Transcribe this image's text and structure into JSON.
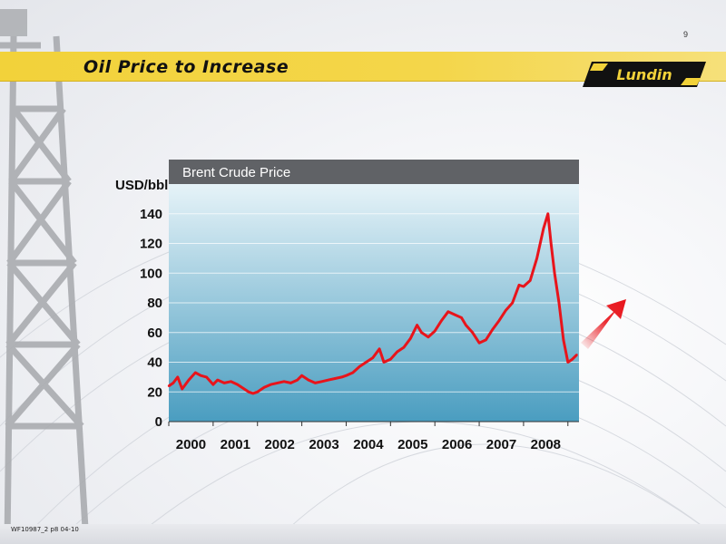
{
  "slide": {
    "title": "Oil Price to Increase",
    "page_number": "9",
    "logo_text": "Lundin",
    "footer_code": "WF10987_2 p8 04-10"
  },
  "colors": {
    "header_band": "#f2d23a",
    "chart_header": "#606266",
    "plot_top": "#e6f3f8",
    "plot_bottom": "#4a9dc0",
    "series_line": "#e8141b",
    "arrow": "#e8141b"
  },
  "chart_data": {
    "type": "line",
    "title": "Brent Crude Price",
    "ylabel": "USD/bbl",
    "xlabel": "",
    "ylim": [
      0,
      160
    ],
    "xlim": [
      2000.0,
      2009.25
    ],
    "y_ticks": [
      0,
      20,
      40,
      60,
      80,
      100,
      120,
      140
    ],
    "x_tick_labels": [
      "2000",
      "2001",
      "2002",
      "2003",
      "2004",
      "2005",
      "2006",
      "2007",
      "2008"
    ],
    "grid": true,
    "legend": "none",
    "annotations": [
      "upward-arrow"
    ],
    "series": [
      {
        "x": [
          2000.0,
          2000.1,
          2000.2,
          2000.3,
          2000.45,
          2000.6,
          2000.72,
          2000.85,
          2001.0,
          2001.1,
          2001.25,
          2001.4,
          2001.55,
          2001.7,
          2001.8,
          2001.9,
          2002.0,
          2002.15,
          2002.3,
          2002.45,
          2002.6,
          2002.75,
          2002.9,
          2003.0,
          2003.15,
          2003.3,
          2003.45,
          2003.6,
          2003.75,
          2003.9,
          2004.0,
          2004.15,
          2004.3,
          2004.45,
          2004.6,
          2004.75,
          2004.85,
          2005.0,
          2005.15,
          2005.3,
          2005.45,
          2005.6,
          2005.7,
          2005.85,
          2006.0,
          2006.15,
          2006.3,
          2006.45,
          2006.6,
          2006.7,
          2006.85,
          2007.0,
          2007.15,
          2007.3,
          2007.45,
          2007.6,
          2007.75,
          2007.9,
          2008.0,
          2008.15,
          2008.3,
          2008.45,
          2008.55,
          2008.62,
          2008.7,
          2008.8,
          2008.9,
          2009.0,
          2009.1,
          2009.2
        ],
        "values": [
          24,
          26,
          30,
          22,
          28,
          33,
          31,
          30,
          25,
          28,
          26,
          27,
          25,
          22,
          20,
          19,
          20,
          23,
          25,
          26,
          27,
          26,
          28,
          31,
          28,
          26,
          27,
          28,
          29,
          30,
          31,
          33,
          37,
          40,
          43,
          49,
          40,
          42,
          47,
          50,
          56,
          65,
          60,
          57,
          61,
          68,
          74,
          72,
          70,
          65,
          60,
          53,
          55,
          62,
          68,
          75,
          80,
          92,
          91,
          95,
          110,
          130,
          140,
          120,
          100,
          80,
          55,
          40,
          42,
          45
        ]
      }
    ]
  }
}
